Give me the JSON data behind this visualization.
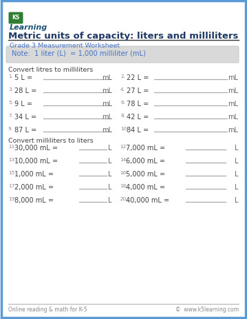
{
  "title": "Metric units of capacity: liters and milliliters",
  "subtitle": "Grade 3 Measurement Worksheet",
  "note": "Note:  1 liter (L)  = 1,000 milliliter (mL)",
  "section1": "Convert litres to milliliters",
  "section2": "Convert milliliters to liters",
  "col1_questions": [
    {
      "num": "1.",
      "q": "5 L =",
      "unit": "mL"
    },
    {
      "num": "3.",
      "q": "28 L =",
      "unit": "mL"
    },
    {
      "num": "5.",
      "q": "9 L =",
      "unit": "mL"
    },
    {
      "num": "7.",
      "q": "34 L =",
      "unit": "mL"
    },
    {
      "num": "9.",
      "q": "87 L =",
      "unit": "mL"
    }
  ],
  "col2_questions": [
    {
      "num": "2.",
      "q": "22 L =",
      "unit": "mL"
    },
    {
      "num": "4.",
      "q": "27 L =",
      "unit": "mL"
    },
    {
      "num": "6.",
      "q": "78 L =",
      "unit": "mL"
    },
    {
      "num": "8.",
      "q": "42 L =",
      "unit": "mL"
    },
    {
      "num": "10.",
      "q": "84 L =",
      "unit": "mL"
    }
  ],
  "col3_questions": [
    {
      "num": "11.",
      "q": "30,000 mL =",
      "unit": "L"
    },
    {
      "num": "13.",
      "q": "10,000 mL =",
      "unit": "L"
    },
    {
      "num": "15.",
      "q": "1,000 mL =",
      "unit": "L"
    },
    {
      "num": "17.",
      "q": "2,000 mL =",
      "unit": "L"
    },
    {
      "num": "19.",
      "q": "8,000 mL =",
      "unit": "L"
    }
  ],
  "col4_questions": [
    {
      "num": "12.",
      "q": "7,000 mL =",
      "unit": "L"
    },
    {
      "num": "14.",
      "q": "6,000 mL =",
      "unit": "L"
    },
    {
      "num": "16.",
      "q": "5,000 mL =",
      "unit": "L"
    },
    {
      "num": "18.",
      "q": "4,000 mL =",
      "unit": "L"
    },
    {
      "num": "20.",
      "q": "40,000 mL =",
      "unit": "L"
    }
  ],
  "footer_left": "Online reading & math for K-5",
  "footer_right": "©  www.k5learning.com",
  "bg_color": "#ffffff",
  "outer_border_color": "#5b9bd5",
  "note_bg": "#d9d9d9",
  "title_color": "#1f3864",
  "subtitle_color": "#4472c4",
  "note_color": "#4472c4",
  "section_color": "#404040",
  "question_color": "#404040",
  "num_color": "#888888",
  "line_color": "#aaaaaa",
  "unit_color": "#666666",
  "footer_color": "#888888",
  "title_line_color": "#333333"
}
